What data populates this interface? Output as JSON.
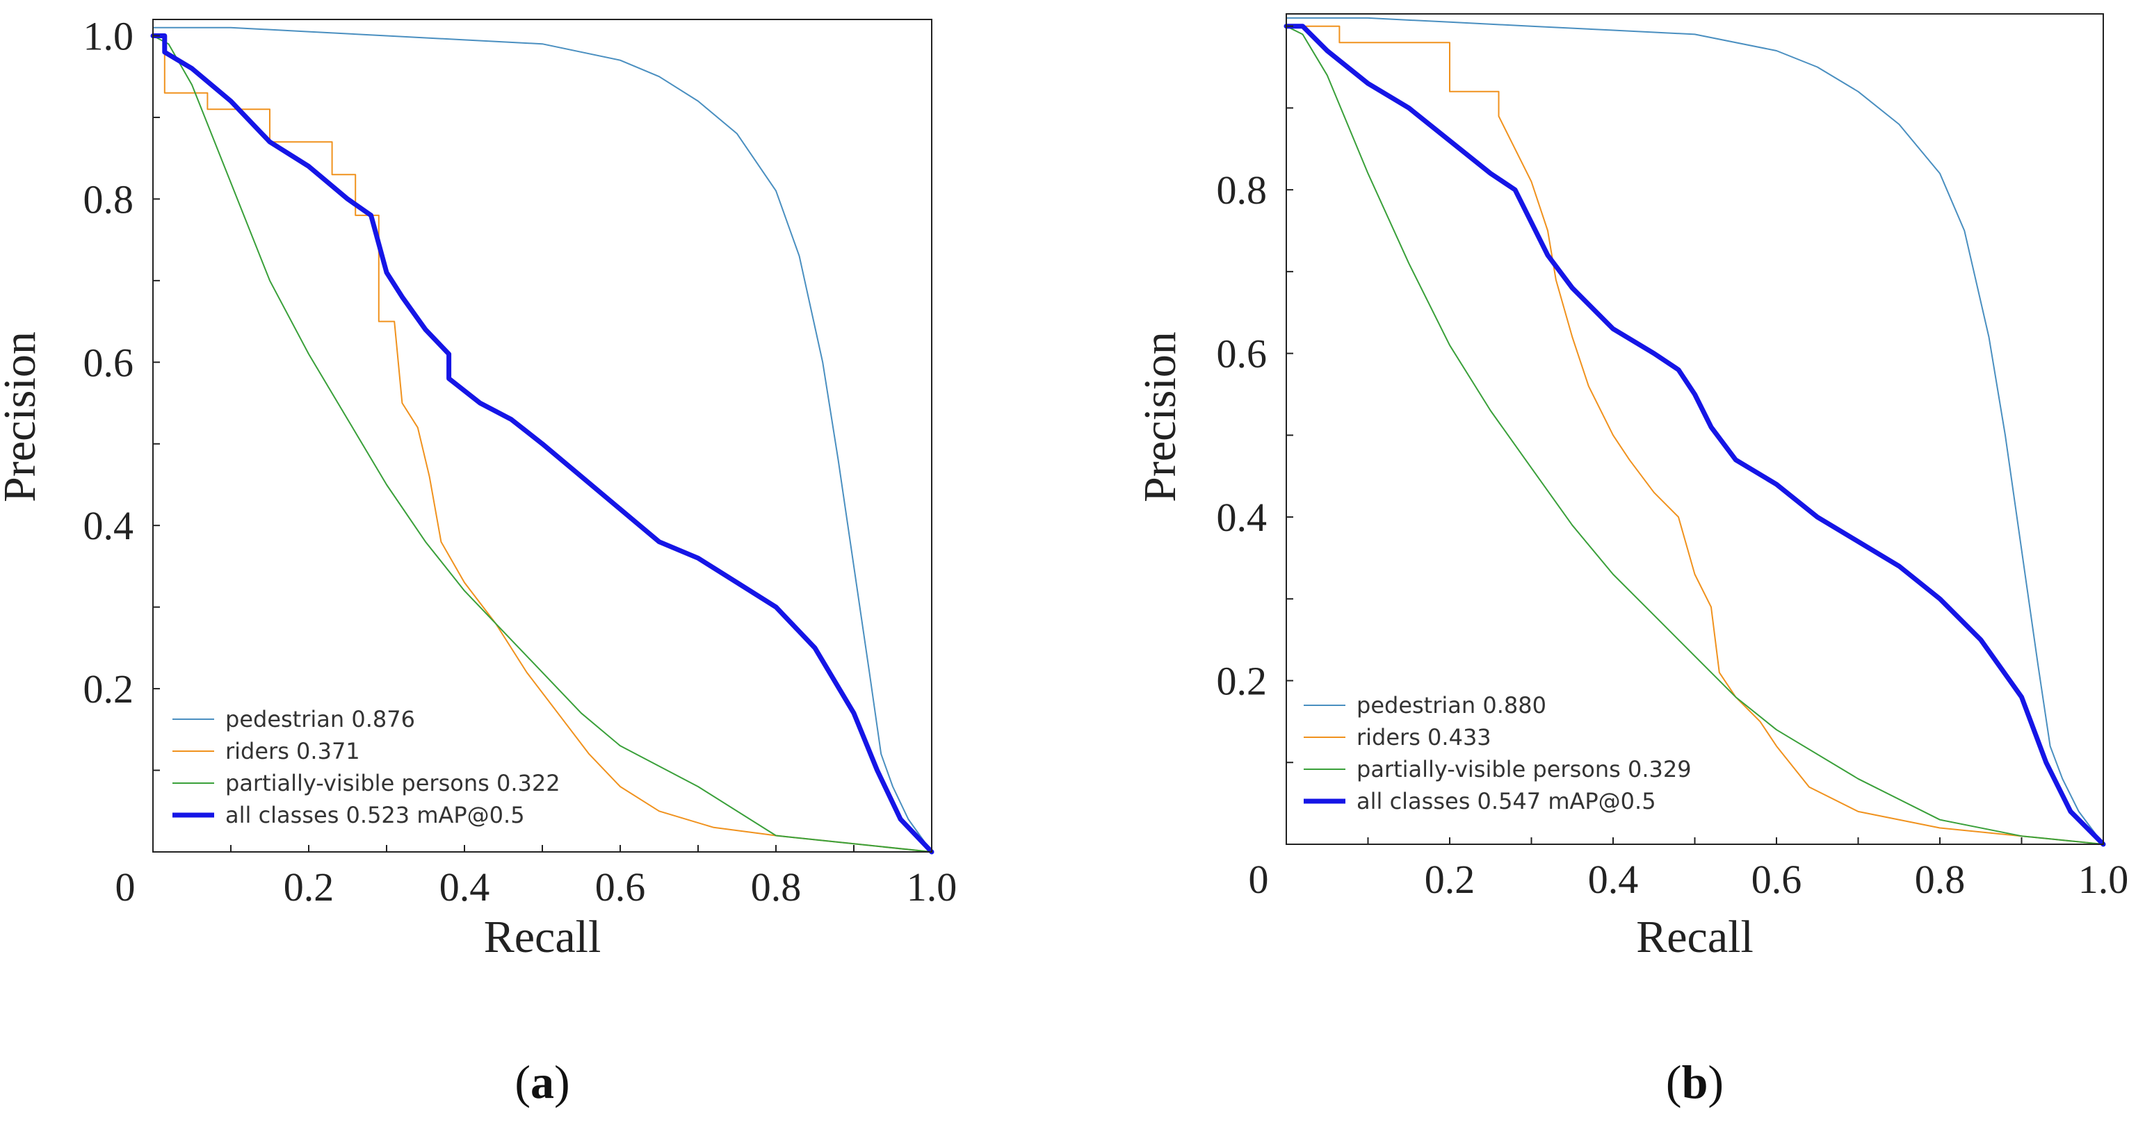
{
  "chart_data": [
    {
      "type": "line",
      "panel_label": "a",
      "xlabel": "Recall",
      "ylabel": "Precision",
      "xlim": [
        0,
        1
      ],
      "ylim": [
        0,
        1.02
      ],
      "x_ticks": [
        {
          "v": 0,
          "t": "0"
        },
        {
          "v": 0.2,
          "t": "0.2"
        },
        {
          "v": 0.4,
          "t": "0.4"
        },
        {
          "v": 0.6,
          "t": "0.6"
        },
        {
          "v": 0.8,
          "t": "0.8"
        },
        {
          "v": 1.0,
          "t": "1.0"
        }
      ],
      "y_ticks": [
        {
          "v": 0.2,
          "t": "0.2"
        },
        {
          "v": 0.4,
          "t": "0.4"
        },
        {
          "v": 0.6,
          "t": "0.6"
        },
        {
          "v": 0.8,
          "t": "0.8"
        },
        {
          "v": 1.0,
          "t": "1.0"
        }
      ],
      "legend_position": "bottom-left",
      "series": [
        {
          "name": "pedestrian",
          "label": "pedestrian 0.876",
          "color": "#4a8fc0",
          "width": 2,
          "points": [
            [
              0,
              1.01
            ],
            [
              0.1,
              1.01
            ],
            [
              0.2,
              1.005
            ],
            [
              0.3,
              1.0
            ],
            [
              0.4,
              0.995
            ],
            [
              0.5,
              0.99
            ],
            [
              0.6,
              0.97
            ],
            [
              0.65,
              0.95
            ],
            [
              0.7,
              0.92
            ],
            [
              0.75,
              0.88
            ],
            [
              0.8,
              0.81
            ],
            [
              0.83,
              0.73
            ],
            [
              0.86,
              0.6
            ],
            [
              0.88,
              0.48
            ],
            [
              0.9,
              0.35
            ],
            [
              0.92,
              0.22
            ],
            [
              0.935,
              0.12
            ],
            [
              0.95,
              0.08
            ],
            [
              0.97,
              0.04
            ],
            [
              1.0,
              0.0
            ]
          ]
        },
        {
          "name": "riders",
          "label": "riders 0.371",
          "color": "#f0921e",
          "width": 2,
          "points": [
            [
              0,
              1.0
            ],
            [
              0.015,
              1.0
            ],
            [
              0.015,
              0.93
            ],
            [
              0.07,
              0.93
            ],
            [
              0.07,
              0.91
            ],
            [
              0.15,
              0.91
            ],
            [
              0.15,
              0.87
            ],
            [
              0.23,
              0.87
            ],
            [
              0.23,
              0.83
            ],
            [
              0.26,
              0.83
            ],
            [
              0.26,
              0.78
            ],
            [
              0.29,
              0.78
            ],
            [
              0.29,
              0.65
            ],
            [
              0.31,
              0.65
            ],
            [
              0.32,
              0.55
            ],
            [
              0.34,
              0.52
            ],
            [
              0.355,
              0.46
            ],
            [
              0.37,
              0.38
            ],
            [
              0.4,
              0.33
            ],
            [
              0.44,
              0.28
            ],
            [
              0.48,
              0.22
            ],
            [
              0.52,
              0.17
            ],
            [
              0.56,
              0.12
            ],
            [
              0.6,
              0.08
            ],
            [
              0.65,
              0.05
            ],
            [
              0.72,
              0.03
            ],
            [
              0.8,
              0.02
            ],
            [
              0.9,
              0.01
            ],
            [
              1.0,
              0.0
            ]
          ]
        },
        {
          "name": "partially-visible persons",
          "label": "partially-visible persons 0.322",
          "color": "#3aa03a",
          "width": 2,
          "points": [
            [
              0,
              1.0
            ],
            [
              0.02,
              0.99
            ],
            [
              0.05,
              0.94
            ],
            [
              0.1,
              0.82
            ],
            [
              0.15,
              0.7
            ],
            [
              0.2,
              0.61
            ],
            [
              0.25,
              0.53
            ],
            [
              0.3,
              0.45
            ],
            [
              0.35,
              0.38
            ],
            [
              0.4,
              0.32
            ],
            [
              0.45,
              0.27
            ],
            [
              0.5,
              0.22
            ],
            [
              0.55,
              0.17
            ],
            [
              0.6,
              0.13
            ],
            [
              0.7,
              0.08
            ],
            [
              0.8,
              0.02
            ],
            [
              0.9,
              0.01
            ],
            [
              1.0,
              0.0
            ]
          ]
        },
        {
          "name": "all classes",
          "label": "all classes 0.523 mAP@0.5",
          "color": "#1515e6",
          "width": 7,
          "points": [
            [
              0,
              1.0
            ],
            [
              0.015,
              1.0
            ],
            [
              0.015,
              0.98
            ],
            [
              0.05,
              0.96
            ],
            [
              0.1,
              0.92
            ],
            [
              0.15,
              0.87
            ],
            [
              0.2,
              0.84
            ],
            [
              0.25,
              0.8
            ],
            [
              0.28,
              0.78
            ],
            [
              0.3,
              0.71
            ],
            [
              0.32,
              0.68
            ],
            [
              0.35,
              0.64
            ],
            [
              0.38,
              0.61
            ],
            [
              0.38,
              0.58
            ],
            [
              0.42,
              0.55
            ],
            [
              0.46,
              0.53
            ],
            [
              0.5,
              0.5
            ],
            [
              0.55,
              0.46
            ],
            [
              0.6,
              0.42
            ],
            [
              0.65,
              0.38
            ],
            [
              0.7,
              0.36
            ],
            [
              0.75,
              0.33
            ],
            [
              0.8,
              0.3
            ],
            [
              0.85,
              0.25
            ],
            [
              0.9,
              0.17
            ],
            [
              0.93,
              0.1
            ],
            [
              0.96,
              0.04
            ],
            [
              1.0,
              0.0
            ]
          ]
        }
      ]
    },
    {
      "type": "line",
      "panel_label": "b",
      "xlabel": "Recall",
      "ylabel": "Precision",
      "xlim": [
        0,
        1
      ],
      "ylim": [
        0,
        1.015
      ],
      "x_ticks": [
        {
          "v": 0,
          "t": "0"
        },
        {
          "v": 0.2,
          "t": "0.2"
        },
        {
          "v": 0.4,
          "t": "0.4"
        },
        {
          "v": 0.6,
          "t": "0.6"
        },
        {
          "v": 0.8,
          "t": "0.8"
        },
        {
          "v": 1.0,
          "t": "1.0"
        }
      ],
      "y_ticks": [
        {
          "v": 0.2,
          "t": "0.2"
        },
        {
          "v": 0.4,
          "t": "0.4"
        },
        {
          "v": 0.6,
          "t": "0.6"
        },
        {
          "v": 0.8,
          "t": "0.8"
        }
      ],
      "legend_position": "bottom-left",
      "series": [
        {
          "name": "pedestrian",
          "label": "pedestrian 0.880",
          "color": "#4a8fc0",
          "width": 2,
          "points": [
            [
              0,
              1.01
            ],
            [
              0.1,
              1.01
            ],
            [
              0.2,
              1.005
            ],
            [
              0.3,
              1.0
            ],
            [
              0.4,
              0.995
            ],
            [
              0.5,
              0.99
            ],
            [
              0.6,
              0.97
            ],
            [
              0.65,
              0.95
            ],
            [
              0.7,
              0.92
            ],
            [
              0.75,
              0.88
            ],
            [
              0.8,
              0.82
            ],
            [
              0.83,
              0.75
            ],
            [
              0.86,
              0.62
            ],
            [
              0.88,
              0.5
            ],
            [
              0.9,
              0.36
            ],
            [
              0.92,
              0.22
            ],
            [
              0.935,
              0.12
            ],
            [
              0.95,
              0.08
            ],
            [
              0.97,
              0.04
            ],
            [
              1.0,
              0.0
            ]
          ]
        },
        {
          "name": "riders",
          "label": "riders 0.433",
          "color": "#f0921e",
          "width": 2,
          "points": [
            [
              0,
              1.0
            ],
            [
              0.065,
              1.0
            ],
            [
              0.065,
              0.98
            ],
            [
              0.2,
              0.98
            ],
            [
              0.2,
              0.95
            ],
            [
              0.2,
              0.92
            ],
            [
              0.26,
              0.92
            ],
            [
              0.26,
              0.89
            ],
            [
              0.3,
              0.81
            ],
            [
              0.32,
              0.75
            ],
            [
              0.33,
              0.69
            ],
            [
              0.35,
              0.62
            ],
            [
              0.37,
              0.56
            ],
            [
              0.4,
              0.5
            ],
            [
              0.42,
              0.47
            ],
            [
              0.45,
              0.43
            ],
            [
              0.48,
              0.4
            ],
            [
              0.5,
              0.33
            ],
            [
              0.52,
              0.29
            ],
            [
              0.53,
              0.21
            ],
            [
              0.55,
              0.18
            ],
            [
              0.58,
              0.15
            ],
            [
              0.6,
              0.12
            ],
            [
              0.64,
              0.07
            ],
            [
              0.7,
              0.04
            ],
            [
              0.8,
              0.02
            ],
            [
              0.9,
              0.01
            ],
            [
              1.0,
              0.0
            ]
          ]
        },
        {
          "name": "partially-visible persons",
          "label": "partially-visible persons 0.329",
          "color": "#3aa03a",
          "width": 2,
          "points": [
            [
              0,
              1.0
            ],
            [
              0.02,
              0.99
            ],
            [
              0.05,
              0.94
            ],
            [
              0.1,
              0.82
            ],
            [
              0.15,
              0.71
            ],
            [
              0.2,
              0.61
            ],
            [
              0.25,
              0.53
            ],
            [
              0.3,
              0.46
            ],
            [
              0.35,
              0.39
            ],
            [
              0.4,
              0.33
            ],
            [
              0.45,
              0.28
            ],
            [
              0.5,
              0.23
            ],
            [
              0.55,
              0.18
            ],
            [
              0.6,
              0.14
            ],
            [
              0.7,
              0.08
            ],
            [
              0.8,
              0.03
            ],
            [
              0.9,
              0.01
            ],
            [
              1.0,
              0.0
            ]
          ]
        },
        {
          "name": "all classes",
          "label": "all classes 0.547 mAP@0.5",
          "color": "#1515e6",
          "width": 7,
          "points": [
            [
              0,
              1.0
            ],
            [
              0.02,
              1.0
            ],
            [
              0.05,
              0.97
            ],
            [
              0.1,
              0.93
            ],
            [
              0.15,
              0.9
            ],
            [
              0.2,
              0.86
            ],
            [
              0.25,
              0.82
            ],
            [
              0.28,
              0.8
            ],
            [
              0.3,
              0.76
            ],
            [
              0.32,
              0.72
            ],
            [
              0.35,
              0.68
            ],
            [
              0.4,
              0.63
            ],
            [
              0.45,
              0.6
            ],
            [
              0.48,
              0.58
            ],
            [
              0.5,
              0.55
            ],
            [
              0.52,
              0.51
            ],
            [
              0.55,
              0.47
            ],
            [
              0.6,
              0.44
            ],
            [
              0.65,
              0.4
            ],
            [
              0.7,
              0.37
            ],
            [
              0.75,
              0.34
            ],
            [
              0.8,
              0.3
            ],
            [
              0.85,
              0.25
            ],
            [
              0.9,
              0.18
            ],
            [
              0.93,
              0.1
            ],
            [
              0.96,
              0.04
            ],
            [
              1.0,
              0.0
            ]
          ]
        }
      ]
    }
  ]
}
